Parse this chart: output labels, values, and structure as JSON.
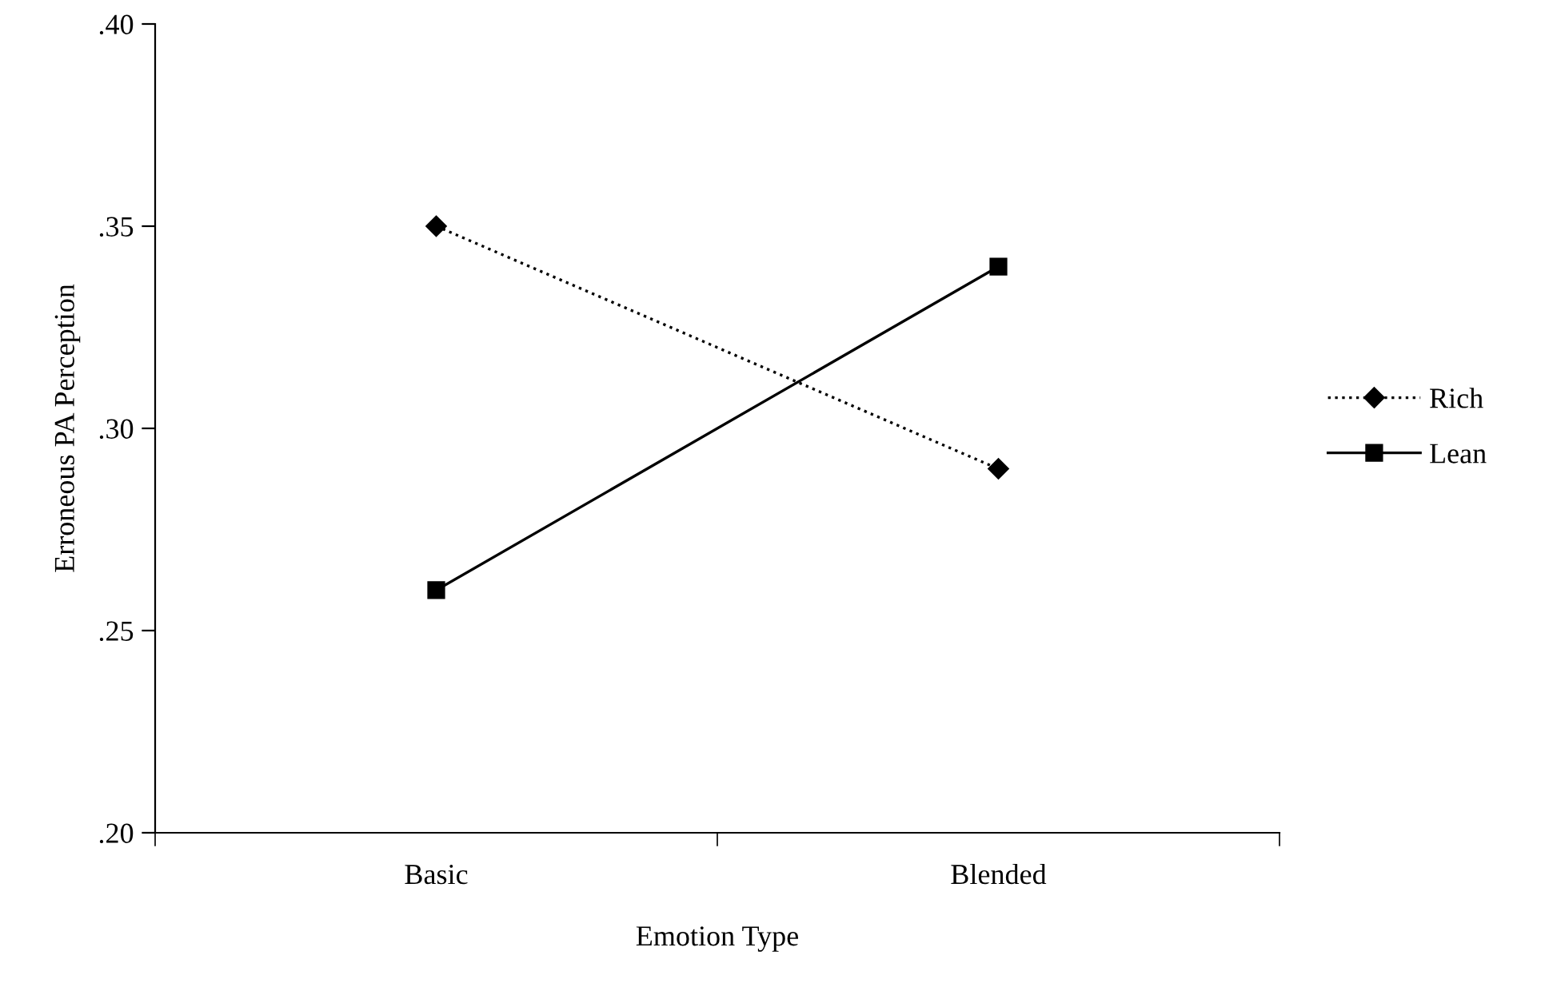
{
  "chart_data": {
    "type": "line",
    "xlabel": "Emotion Type",
    "ylabel": "Erroneous PA Perception",
    "categories": [
      "Basic",
      "Blended"
    ],
    "series": [
      {
        "name": "Rich",
        "color": "#000000",
        "values": [
          0.35,
          0.29
        ],
        "marker": "diamond",
        "line_style": "dotted"
      },
      {
        "name": "Lean",
        "color": "#000000",
        "values": [
          0.26,
          0.34
        ],
        "marker": "square",
        "line_style": "solid"
      }
    ],
    "ylim": [
      0.2,
      0.4
    ],
    "yticks": [
      {
        "value": 0.2,
        "label": ".20"
      },
      {
        "value": 0.25,
        "label": ".25"
      },
      {
        "value": 0.3,
        "label": ".30"
      },
      {
        "value": 0.35,
        "label": ".35"
      },
      {
        "value": 0.4,
        "label": ".40"
      }
    ],
    "grid": false,
    "legend": "right"
  }
}
